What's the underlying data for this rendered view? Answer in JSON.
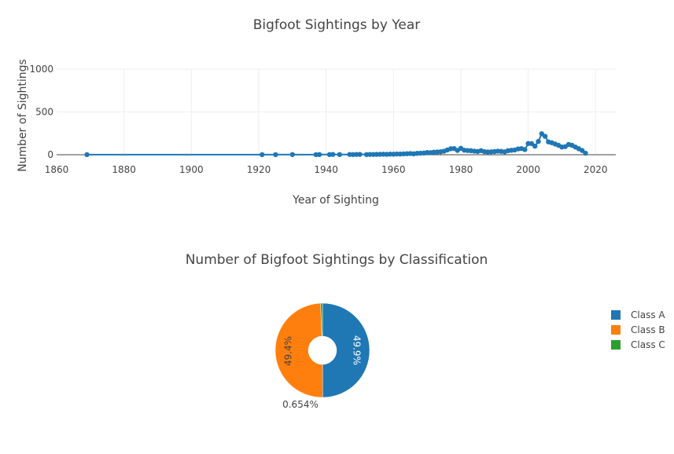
{
  "chart_data": [
    {
      "type": "line",
      "title": "Bigfoot Sightings by Year",
      "xlabel": "Year of Sighting",
      "ylabel": "Number of Sightings",
      "xlim": [
        1860,
        2026
      ],
      "ylim": [
        0,
        1000
      ],
      "x_ticks": [
        "1860",
        "1880",
        "1900",
        "1920",
        "1940",
        "1960",
        "1980",
        "2000",
        "2020"
      ],
      "y_ticks": [
        "0",
        "500",
        "1000"
      ],
      "grid": true,
      "marker_color": "#1f77b4",
      "series": [
        {
          "x": [
            1869,
            1921,
            1925,
            1930,
            1937,
            1938,
            1941,
            1942,
            1944,
            1947,
            1948,
            1949,
            1950,
            1952,
            1953,
            1954,
            1955,
            1956,
            1957,
            1958,
            1959,
            1960,
            1961,
            1962,
            1963,
            1964,
            1965,
            1966,
            1967,
            1968,
            1969,
            1970,
            1971,
            1972,
            1973,
            1974,
            1975,
            1976,
            1977,
            1978,
            1979,
            1980,
            1981,
            1982,
            1983,
            1984,
            1985,
            1986,
            1987,
            1988,
            1989,
            1990,
            1991,
            1992,
            1993,
            1994,
            1995,
            1996,
            1997,
            1998,
            1999,
            2000,
            2001,
            2002,
            2003,
            2004,
            2005,
            2006,
            2007,
            2008,
            2009,
            2010,
            2011,
            2012,
            2013,
            2014,
            2015,
            2016,
            2017
          ],
          "y": [
            1,
            1,
            1,
            2,
            1,
            2,
            2,
            3,
            2,
            3,
            2,
            3,
            4,
            2,
            3,
            3,
            4,
            5,
            6,
            5,
            7,
            6,
            9,
            8,
            10,
            12,
            14,
            11,
            16,
            18,
            20,
            26,
            25,
            30,
            33,
            35,
            41,
            56,
            70,
            72,
            51,
            75,
            53,
            49,
            47,
            42,
            38,
            48,
            36,
            32,
            34,
            37,
            42,
            39,
            34,
            47,
            52,
            56,
            68,
            72,
            60,
            131,
            130,
            100,
            155,
            245,
            215,
            150,
            140,
            125,
            110,
            90,
            95,
            120,
            110,
            90,
            70,
            50,
            18
          ]
        }
      ]
    },
    {
      "type": "pie",
      "title": "Number of Bigfoot Sightings by Classification",
      "hole": true,
      "labels": [
        "Class A",
        "Class B",
        "Class C"
      ],
      "values": [
        49.9,
        49.4,
        0.654
      ],
      "text_labels": [
        "49.9%",
        "49.4%",
        "0.654%"
      ],
      "colors": [
        "#1f77b4",
        "#ff7f0e",
        "#2ca02c"
      ],
      "legend_position": "right"
    }
  ]
}
